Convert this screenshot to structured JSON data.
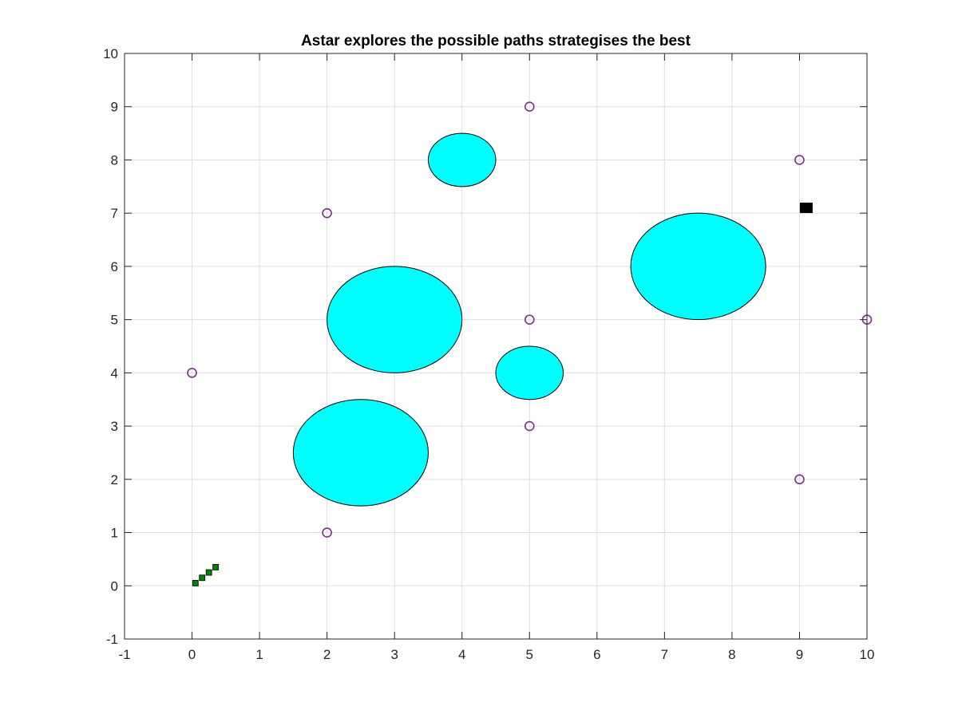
{
  "chart_data": {
    "type": "scatter",
    "title": "Astar explores the possible paths strategises the best",
    "xlabel": "",
    "ylabel": "",
    "xlim": [
      -1,
      10
    ],
    "ylim": [
      -1,
      10
    ],
    "xticks": [
      -1,
      0,
      1,
      2,
      3,
      4,
      5,
      6,
      7,
      8,
      9,
      10
    ],
    "yticks": [
      -1,
      0,
      1,
      2,
      3,
      4,
      5,
      6,
      7,
      8,
      9,
      10
    ],
    "grid": true,
    "obstacles": {
      "shape": "ellipse",
      "fill_color": "#00ffff",
      "edge_color": "#000000",
      "items": [
        {
          "cx": 4,
          "cy": 8,
          "rx": 0.5,
          "ry": 0.5
        },
        {
          "cx": 3,
          "cy": 5,
          "rx": 1,
          "ry": 1
        },
        {
          "cx": 2.5,
          "cy": 2.5,
          "rx": 1,
          "ry": 1
        },
        {
          "cx": 5,
          "cy": 4,
          "rx": 0.5,
          "ry": 0.5
        },
        {
          "cx": 7.5,
          "cy": 6,
          "rx": 1,
          "ry": 1
        }
      ]
    },
    "waypoints": {
      "marker": "circle",
      "color": "#7e2f8e",
      "points": [
        {
          "x": 0,
          "y": 4
        },
        {
          "x": 2,
          "y": 7
        },
        {
          "x": 2,
          "y": 1
        },
        {
          "x": 5,
          "y": 9
        },
        {
          "x": 5,
          "y": 5
        },
        {
          "x": 5,
          "y": 3
        },
        {
          "x": 9,
          "y": 8
        },
        {
          "x": 9,
          "y": 2
        },
        {
          "x": 10,
          "y": 5
        }
      ]
    },
    "path": {
      "marker": "square",
      "color": "#008000",
      "points": [
        {
          "x": 0.05,
          "y": 0.05
        },
        {
          "x": 0.15,
          "y": 0.15
        },
        {
          "x": 0.25,
          "y": 0.25
        },
        {
          "x": 0.35,
          "y": 0.35
        }
      ]
    },
    "goal": {
      "marker": "square",
      "color": "#000000",
      "x": 9.1,
      "y": 7.1
    }
  }
}
